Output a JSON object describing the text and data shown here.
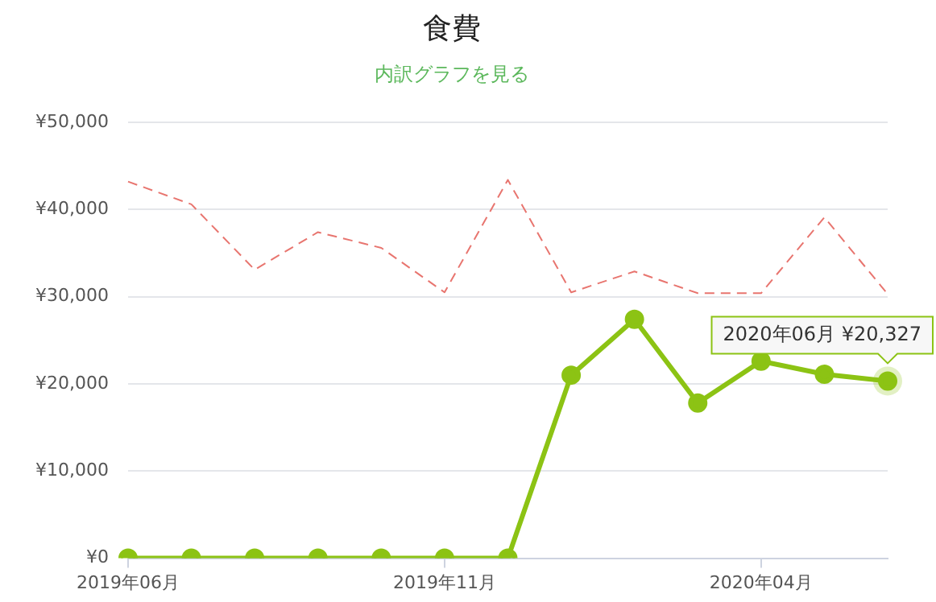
{
  "chart_data": {
    "type": "line",
    "title": "食費",
    "subtitle": "内訳グラフを見る",
    "categories": [
      "2019年06月",
      null,
      null,
      null,
      null,
      "2019年11月",
      null,
      null,
      null,
      null,
      "2020年04月",
      null,
      null
    ],
    "series": [
      {
        "color": "#8cc314",
        "marker": "circle",
        "line_style": "solid",
        "values": [
          0,
          0,
          0,
          0,
          0,
          0,
          0,
          21000,
          27400,
          17800,
          22600,
          21100,
          20327
        ]
      },
      {
        "color": "#e8756f",
        "marker": "none",
        "line_style": "dashed",
        "values": [
          43200,
          40600,
          33100,
          37400,
          35600,
          30500,
          43400,
          30500,
          32900,
          30400,
          30400,
          39100,
          30300
        ]
      }
    ],
    "ylim": [
      0,
      50000
    ],
    "yticks": [
      {
        "value": 0,
        "label": "¥0"
      },
      {
        "value": 10000,
        "label": "¥10,000"
      },
      {
        "value": 20000,
        "label": "¥20,000"
      },
      {
        "value": 30000,
        "label": "¥30,000"
      },
      {
        "value": 40000,
        "label": "¥40,000"
      },
      {
        "value": 50000,
        "label": "¥50,000"
      }
    ],
    "grid": "y",
    "legend": false,
    "annotations": [
      {
        "text": "2020年06月 ¥20,327",
        "y": 20327
      }
    ]
  }
}
